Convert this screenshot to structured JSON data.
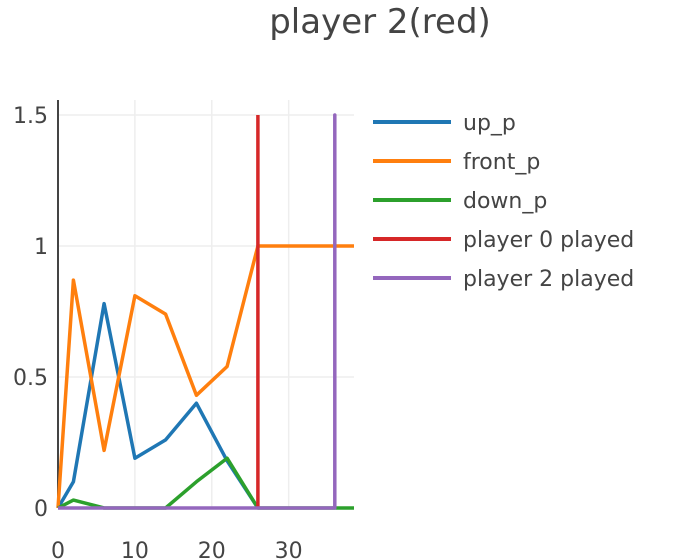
{
  "chart_data": {
    "type": "line",
    "title": "player 2(red)",
    "xlabel": "",
    "ylabel": "",
    "xlim": [
      0,
      38.5
    ],
    "ylim": [
      0,
      1.5
    ],
    "x_ticks": [
      0,
      10,
      20,
      30
    ],
    "y_ticks": [
      0,
      0.5,
      1,
      1.5
    ],
    "y_tick_labels": [
      "0",
      "0.5",
      "1",
      "1.5"
    ],
    "grid": true,
    "legend_position": "right",
    "series": [
      {
        "name": "up_p",
        "color": "#1f77b4",
        "x": [
          0,
          2,
          6,
          10,
          14,
          18,
          22,
          26
        ],
        "y": [
          0,
          0.1,
          0.78,
          0.19,
          0.26,
          0.4,
          0.18,
          0
        ]
      },
      {
        "name": "front_p",
        "color": "#ff7f0e",
        "x": [
          0,
          2,
          6,
          10,
          14,
          18,
          22,
          26,
          38.5
        ],
        "y": [
          0,
          0.87,
          0.22,
          0.81,
          0.74,
          0.43,
          0.54,
          1,
          1
        ]
      },
      {
        "name": "down_p",
        "color": "#2ca02c",
        "x": [
          0,
          2,
          6,
          10,
          14,
          18,
          22,
          26,
          38.5
        ],
        "y": [
          0,
          0.03,
          0,
          0,
          0,
          0.1,
          0.19,
          0,
          0
        ]
      },
      {
        "name": "player 0 played",
        "color": "#d62728",
        "x": [
          26,
          26
        ],
        "y": [
          0,
          1.5
        ]
      },
      {
        "name": "player 2 played",
        "color": "#9467bd",
        "x": [
          0,
          36,
          36,
          36
        ],
        "y": [
          0,
          0,
          1.5,
          0
        ]
      }
    ]
  }
}
